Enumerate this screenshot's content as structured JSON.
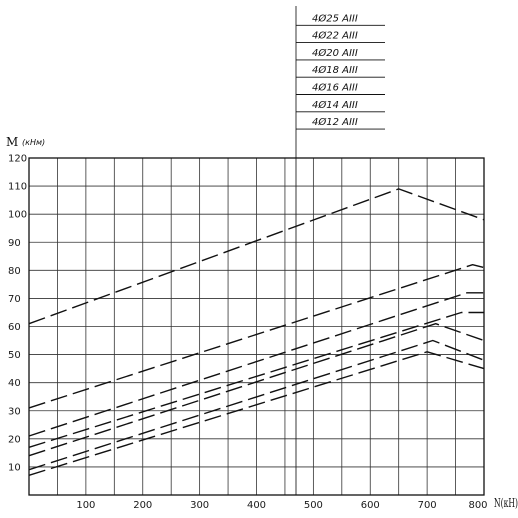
{
  "chart_data": {
    "type": "line",
    "title": "",
    "ylabel": "M",
    "ylabel_unit": "(кНм)",
    "xlabel": "N(кН)",
    "xlim": [
      0,
      800
    ],
    "ylim": [
      0,
      120
    ],
    "x_ticks": [
      100,
      200,
      300,
      400,
      500,
      600,
      700,
      800
    ],
    "y_ticks": [
      10,
      20,
      30,
      40,
      50,
      60,
      70,
      80,
      90,
      100,
      110,
      120
    ],
    "grid": true,
    "line_style": "dashed",
    "legend": {
      "placement": "top-center",
      "entries": [
        "4Ø25 AIII",
        "4Ø22 AIII",
        "4Ø20 AIII",
        "4Ø18 AIII",
        "4Ø16 AIII",
        "4Ø14 AIII",
        "4Ø12 AIII"
      ]
    },
    "series": [
      {
        "name": "4Ø25 AIII",
        "points": [
          [
            0,
            61
          ],
          [
            650,
            109
          ],
          [
            800,
            98
          ]
        ]
      },
      {
        "name": "4Ø22 AIII",
        "points": [
          [
            0,
            31
          ],
          [
            780,
            82
          ],
          [
            800,
            81
          ]
        ]
      },
      {
        "name": "4Ø20 AIII",
        "points": [
          [
            0,
            21
          ],
          [
            770,
            72
          ],
          [
            800,
            72
          ]
        ]
      },
      {
        "name": "4Ø18 AIII",
        "points": [
          [
            0,
            17
          ],
          [
            760,
            65
          ],
          [
            800,
            65
          ]
        ]
      },
      {
        "name": "4Ø16 AIII",
        "points": [
          [
            0,
            14
          ],
          [
            715,
            61
          ],
          [
            800,
            55
          ]
        ]
      },
      {
        "name": "4Ø14 AIII",
        "points": [
          [
            0,
            9
          ],
          [
            710,
            55
          ],
          [
            800,
            48
          ]
        ]
      },
      {
        "name": "4Ø12 AIII",
        "points": [
          [
            0,
            7
          ],
          [
            700,
            51
          ],
          [
            800,
            45
          ]
        ]
      }
    ]
  }
}
